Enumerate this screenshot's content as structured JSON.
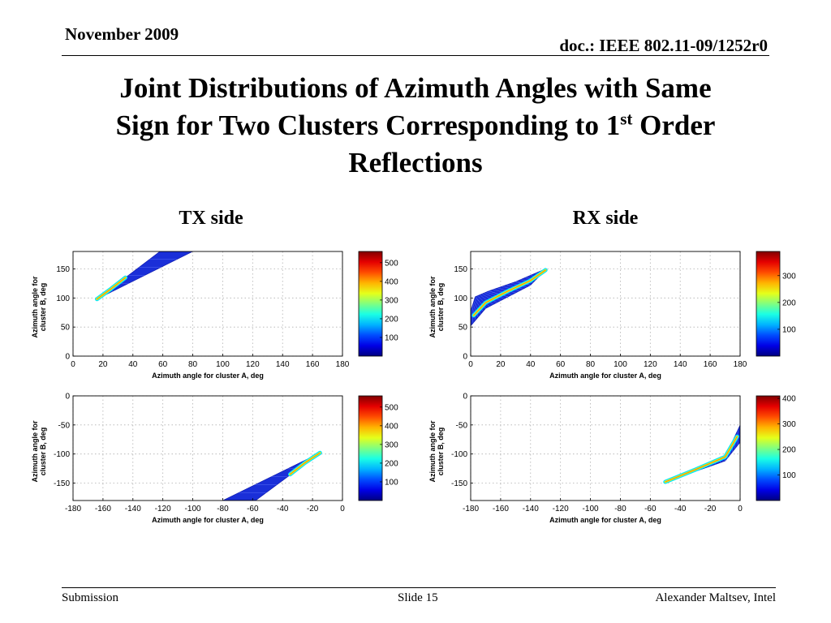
{
  "header": {
    "date": "November 2009",
    "doc_id": "doc.: IEEE 802.11-09/1252r0"
  },
  "title": {
    "line1": "Joint Distributions of Azimuth Angles with Same",
    "line2_pre": "Sign for Two Clusters Corresponding to 1",
    "line2_sup": "st",
    "line2_post": " Order",
    "line3": "Reflections"
  },
  "sides": {
    "tx": "TX side",
    "rx": "RX side"
  },
  "footer": {
    "left": "Submission",
    "center": "Slide 15",
    "right": "Alexander Maltsev, Intel"
  },
  "colors": {
    "low": "#00008f",
    "mid": "#00ffff",
    "high": "#ff0000"
  },
  "chart_data": [
    {
      "type": "heatmap",
      "side": "TX",
      "xlabel": "Azimuth angle for cluster A, deg",
      "ylabel": "Azimuth angle for cluster B, deg",
      "xlim": [
        0,
        180
      ],
      "ylim": [
        0,
        180
      ],
      "xticks": [
        0,
        20,
        40,
        60,
        80,
        100,
        120,
        140,
        160,
        180
      ],
      "yticks": [
        0,
        50,
        100,
        150
      ],
      "grid": true,
      "colorbar": {
        "range": [
          0,
          560
        ],
        "ticks": [
          100,
          200,
          300,
          400,
          500
        ]
      },
      "region": {
        "apex": [
          16,
          98
        ],
        "upper_edge": [
          [
            16,
            98
          ],
          [
            58,
            180
          ]
        ],
        "lower_edge": [
          [
            16,
            98
          ],
          [
            80,
            180
          ]
        ]
      },
      "ridge": [
        [
          16,
          98
        ],
        [
          25,
          115
        ],
        [
          35,
          135
        ]
      ]
    },
    {
      "type": "heatmap",
      "side": "RX",
      "xlabel": "Azimuth angle for cluster A, deg",
      "ylabel": "Azimuth angle for cluster B, deg",
      "xlim": [
        0,
        180
      ],
      "ylim": [
        0,
        180
      ],
      "xticks": [
        0,
        20,
        40,
        60,
        80,
        100,
        120,
        140,
        160,
        180
      ],
      "yticks": [
        0,
        50,
        100,
        150
      ],
      "grid": true,
      "colorbar": {
        "range": [
          0,
          390
        ],
        "ticks": [
          100,
          200,
          300
        ]
      },
      "region": {
        "upper_edge": [
          [
            0,
            78
          ],
          [
            3,
            102
          ],
          [
            12,
            112
          ],
          [
            30,
            128
          ],
          [
            50,
            150
          ]
        ],
        "lower_edge": [
          [
            0,
            52
          ],
          [
            10,
            82
          ],
          [
            25,
            102
          ],
          [
            40,
            122
          ],
          [
            50,
            148
          ]
        ]
      },
      "ridge": [
        [
          2,
          70
        ],
        [
          10,
          92
        ],
        [
          25,
          112
        ],
        [
          40,
          130
        ],
        [
          50,
          148
        ]
      ]
    },
    {
      "type": "heatmap",
      "side": "TX",
      "xlabel": "Azimuth angle for cluster A, deg",
      "ylabel": "Azimuth angle for cluster B, deg",
      "xlim": [
        -180,
        0
      ],
      "ylim": [
        -180,
        0
      ],
      "xticks": [
        -180,
        -160,
        -140,
        -120,
        -100,
        -80,
        -60,
        -40,
        -20,
        0
      ],
      "yticks": [
        -150,
        -100,
        -50,
        0
      ],
      "grid": true,
      "colorbar": {
        "range": [
          0,
          560
        ],
        "ticks": [
          100,
          200,
          300,
          400,
          500
        ]
      },
      "region": {
        "apex": [
          -15,
          -98
        ],
        "upper_edge": [
          [
            -15,
            -98
          ],
          [
            -58,
            -180
          ]
        ],
        "lower_edge": [
          [
            -15,
            -98
          ],
          [
            -80,
            -180
          ]
        ]
      },
      "ridge": [
        [
          -15,
          -98
        ],
        [
          -25,
          -115
        ],
        [
          -35,
          -135
        ]
      ]
    },
    {
      "type": "heatmap",
      "side": "RX",
      "xlabel": "Azimuth angle for cluster A, deg",
      "ylabel": "Azimuth angle for cluster B, deg",
      "xlim": [
        -180,
        0
      ],
      "ylim": [
        -180,
        0
      ],
      "xticks": [
        -180,
        -160,
        -140,
        -120,
        -100,
        -80,
        -60,
        -40,
        -20,
        0
      ],
      "yticks": [
        -150,
        -100,
        -50,
        0
      ],
      "grid": true,
      "colorbar": {
        "range": [
          0,
          410
        ],
        "ticks": [
          100,
          200,
          300,
          400
        ]
      },
      "region": {
        "upper_edge": [
          [
            -50,
            -148
          ],
          [
            -30,
            -125
          ],
          [
            -10,
            -105
          ],
          [
            0,
            -50
          ]
        ],
        "lower_edge": [
          [
            -50,
            -150
          ],
          [
            -30,
            -130
          ],
          [
            -10,
            -112
          ],
          [
            0,
            -80
          ]
        ]
      },
      "ridge": [
        [
          -50,
          -148
        ],
        [
          -30,
          -127
        ],
        [
          -10,
          -105
        ],
        [
          -2,
          -70
        ]
      ]
    }
  ]
}
